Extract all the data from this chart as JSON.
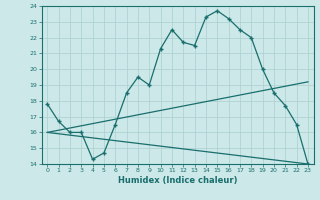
{
  "xlabel": "Humidex (Indice chaleur)",
  "bg_color": "#cce8e8",
  "line_color": "#1a6e6e",
  "grid_color": "#aacfcf",
  "xlim": [
    -0.5,
    23.5
  ],
  "ylim": [
    14,
    24
  ],
  "xticks": [
    0,
    1,
    2,
    3,
    4,
    5,
    6,
    7,
    8,
    9,
    10,
    11,
    12,
    13,
    14,
    15,
    16,
    17,
    18,
    19,
    20,
    21,
    22,
    23
  ],
  "yticks": [
    14,
    15,
    16,
    17,
    18,
    19,
    20,
    21,
    22,
    23,
    24
  ],
  "series1_x": [
    0,
    1,
    2,
    3,
    4,
    5,
    6,
    7,
    8,
    9,
    10,
    11,
    12,
    13,
    14,
    15,
    16,
    17,
    18,
    19,
    20,
    21,
    22,
    23
  ],
  "series1_y": [
    17.8,
    16.7,
    16.0,
    16.0,
    14.3,
    14.7,
    16.5,
    18.5,
    19.5,
    19.0,
    21.3,
    22.5,
    21.7,
    21.5,
    23.3,
    23.7,
    23.2,
    22.5,
    22.0,
    20.0,
    18.5,
    17.7,
    16.5,
    14.0
  ],
  "series2_x": [
    0,
    23
  ],
  "series2_y": [
    16.0,
    19.2
  ],
  "series3_x": [
    0,
    23
  ],
  "series3_y": [
    16.0,
    14.0
  ]
}
